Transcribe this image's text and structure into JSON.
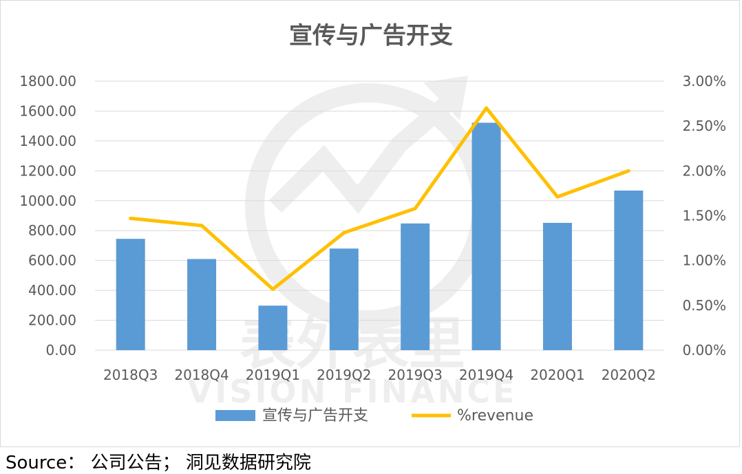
{
  "chart_data": {
    "type": "bar",
    "title": "宣传与广告开支",
    "categories": [
      "2018Q3",
      "2018Q4",
      "2019Q1",
      "2019Q2",
      "2019Q3",
      "2019Q4",
      "2020Q1",
      "2020Q2"
    ],
    "series": [
      {
        "name": "宣传与广告开支",
        "type": "bar",
        "axis": "left",
        "color": "#5b9bd5",
        "values": [
          745,
          610,
          298,
          680,
          848,
          1522,
          852,
          1068
        ]
      },
      {
        "name": "%revenue",
        "type": "line",
        "axis": "right",
        "color": "#ffc000",
        "values": [
          1.47,
          1.39,
          0.68,
          1.31,
          1.58,
          2.7,
          1.71,
          2.0
        ]
      }
    ],
    "left_axis": {
      "ylim": [
        0,
        1800
      ],
      "ticks": [
        "0.00",
        "200.00",
        "400.00",
        "600.00",
        "800.00",
        "1000.00",
        "1200.00",
        "1400.00",
        "1600.00",
        "1800.00"
      ]
    },
    "right_axis": {
      "ylim": [
        0,
        3
      ],
      "ticks": [
        "0.00%",
        "0.50%",
        "1.00%",
        "1.50%",
        "2.00%",
        "2.50%",
        "3.00%"
      ]
    },
    "grid": true,
    "legend": "bottom"
  },
  "watermark": {
    "cn": "表外表里",
    "en": "VISION FINANCE"
  },
  "source": "Source：  公司公告；  洞见数据研究院"
}
